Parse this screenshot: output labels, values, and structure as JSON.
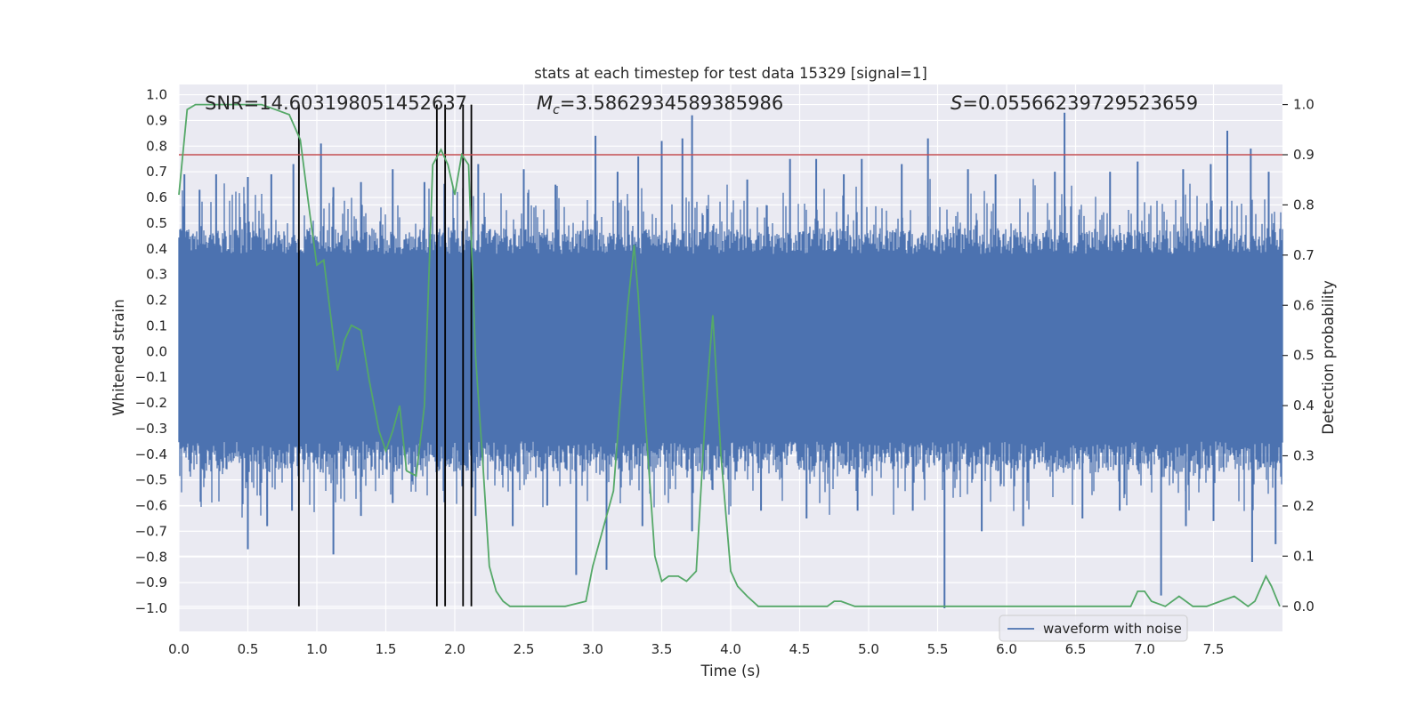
{
  "chart_data": {
    "type": "line",
    "title": "stats at each timestep for test data 15329 [signal=1]",
    "xlabel": "Time (s)",
    "ylabel_left": "Whitened strain",
    "ylabel_right": "Detection probability",
    "xlim": [
      0.0,
      8.0
    ],
    "ylim_left": [
      -1.09,
      1.04
    ],
    "ylim_right": [
      -0.05,
      1.04
    ],
    "x_ticks": [
      "0.0",
      "0.5",
      "1.0",
      "1.5",
      "2.0",
      "2.5",
      "3.0",
      "3.5",
      "4.0",
      "4.5",
      "5.0",
      "5.5",
      "6.0",
      "6.5",
      "7.0",
      "7.5"
    ],
    "y_ticks_left": [
      "1.0",
      "0.9",
      "0.8",
      "0.7",
      "0.6",
      "0.5",
      "0.4",
      "0.3",
      "0.2",
      "0.1",
      "0.0",
      "−0.1",
      "−0.2",
      "−0.3",
      "−0.4",
      "−0.5",
      "−0.6",
      "−0.7",
      "−0.8",
      "−0.9",
      "−1.0"
    ],
    "y_ticks_right": [
      "1.0",
      "0.9",
      "0.8",
      "0.7",
      "0.6",
      "0.5",
      "0.4",
      "0.3",
      "0.2",
      "0.1",
      "0.0"
    ],
    "grid": true,
    "annotations": {
      "snr": "SNR=14.603198051452637",
      "mc_symbol": "M",
      "mc_sub": "c",
      "mc_value": "=3.5862934589385986",
      "s_symbol": "S",
      "s_value": "=0.05566239729523659"
    },
    "threshold": {
      "value": 0.9,
      "color": "#c44e52"
    },
    "vertical_markers": [
      0.87,
      1.87,
      1.93,
      2.06,
      2.12
    ],
    "series": [
      {
        "name": "waveform with noise",
        "color": "#4c72b0",
        "style": "noise-band",
        "typical_envelope": [
          -0.35,
          0.38
        ],
        "spikes": [
          [
            0.04,
            0.69
          ],
          [
            0.15,
            0.63
          ],
          [
            0.27,
            0.69
          ],
          [
            0.5,
            0.68
          ],
          [
            0.67,
            0.69
          ],
          [
            0.83,
            0.73
          ],
          [
            1.03,
            0.81
          ],
          [
            1.12,
            0.64
          ],
          [
            1.32,
            0.66
          ],
          [
            1.55,
            0.71
          ],
          [
            1.78,
            0.66
          ],
          [
            2.17,
            0.73
          ],
          [
            2.5,
            0.71
          ],
          [
            2.73,
            0.65
          ],
          [
            3.02,
            0.84
          ],
          [
            3.18,
            0.7
          ],
          [
            3.33,
            0.76
          ],
          [
            3.5,
            0.82
          ],
          [
            3.65,
            0.83
          ],
          [
            3.72,
            0.92
          ],
          [
            4.12,
            0.67
          ],
          [
            4.43,
            0.75
          ],
          [
            4.62,
            0.75
          ],
          [
            4.82,
            0.69
          ],
          [
            4.95,
            0.75
          ],
          [
            5.24,
            0.73
          ],
          [
            5.43,
            0.83
          ],
          [
            5.72,
            0.71
          ],
          [
            5.92,
            0.69
          ],
          [
            6.35,
            0.7
          ],
          [
            6.42,
            0.93
          ],
          [
            6.75,
            0.7
          ],
          [
            6.95,
            0.74
          ],
          [
            7.28,
            0.71
          ],
          [
            7.48,
            0.73
          ],
          [
            7.6,
            0.86
          ],
          [
            7.77,
            0.79
          ],
          [
            7.9,
            0.7
          ],
          [
            0.5,
            -0.77
          ],
          [
            0.64,
            -0.68
          ],
          [
            0.82,
            -0.62
          ],
          [
            1.12,
            -0.79
          ],
          [
            1.32,
            -0.64
          ],
          [
            1.55,
            -0.59
          ],
          [
            2.15,
            -0.64
          ],
          [
            2.42,
            -0.68
          ],
          [
            2.67,
            -0.6
          ],
          [
            2.88,
            -0.87
          ],
          [
            3.1,
            -0.85
          ],
          [
            3.36,
            -0.68
          ],
          [
            3.72,
            -0.7
          ],
          [
            4.22,
            -0.62
          ],
          [
            4.55,
            -0.65
          ],
          [
            4.92,
            -0.62
          ],
          [
            5.32,
            -0.62
          ],
          [
            5.55,
            -1.0
          ],
          [
            5.82,
            -0.7
          ],
          [
            6.12,
            -0.68
          ],
          [
            6.55,
            -0.65
          ],
          [
            6.82,
            -0.62
          ],
          [
            7.12,
            -0.95
          ],
          [
            7.3,
            -0.68
          ],
          [
            7.5,
            -0.66
          ],
          [
            7.78,
            -0.82
          ],
          [
            7.95,
            -0.75
          ]
        ]
      },
      {
        "name": "",
        "color": "#55a868",
        "axis": "right",
        "x": [
          0.0,
          0.06,
          0.12,
          0.2,
          0.4,
          0.6,
          0.7,
          0.8,
          0.88,
          0.95,
          1.0,
          1.05,
          1.1,
          1.15,
          1.2,
          1.25,
          1.32,
          1.38,
          1.45,
          1.5,
          1.55,
          1.6,
          1.65,
          1.72,
          1.78,
          1.84,
          1.9,
          1.95,
          2.0,
          2.05,
          2.1,
          2.15,
          2.2,
          2.25,
          2.3,
          2.35,
          2.4,
          2.5,
          2.6,
          2.7,
          2.8,
          2.95,
          3.0,
          3.15,
          3.25,
          3.3,
          3.33,
          3.38,
          3.45,
          3.5,
          3.55,
          3.62,
          3.68,
          3.75,
          3.82,
          3.87,
          3.93,
          4.0,
          4.05,
          4.12,
          4.2,
          4.3,
          4.5,
          4.7,
          4.75,
          4.8,
          4.9,
          5.0,
          5.2,
          5.4,
          5.6,
          6.0,
          6.5,
          6.9,
          6.95,
          7.0,
          7.05,
          7.15,
          7.25,
          7.35,
          7.45,
          7.55,
          7.65,
          7.75,
          7.8,
          7.88,
          7.92,
          7.98
        ],
        "values": [
          0.82,
          0.99,
          1.0,
          1.0,
          1.0,
          1.0,
          0.99,
          0.98,
          0.93,
          0.78,
          0.68,
          0.69,
          0.58,
          0.47,
          0.53,
          0.56,
          0.55,
          0.45,
          0.35,
          0.31,
          0.35,
          0.4,
          0.27,
          0.26,
          0.4,
          0.88,
          0.91,
          0.88,
          0.82,
          0.9,
          0.88,
          0.5,
          0.3,
          0.08,
          0.03,
          0.01,
          0.0,
          0.0,
          0.0,
          0.0,
          0.0,
          0.01,
          0.08,
          0.23,
          0.59,
          0.72,
          0.62,
          0.38,
          0.1,
          0.05,
          0.06,
          0.06,
          0.05,
          0.07,
          0.4,
          0.58,
          0.3,
          0.07,
          0.04,
          0.02,
          0.0,
          0.0,
          0.0,
          0.0,
          0.01,
          0.01,
          0.0,
          0.0,
          0.0,
          0.0,
          0.0,
          0.0,
          0.0,
          0.0,
          0.03,
          0.03,
          0.01,
          0.0,
          0.02,
          0.0,
          0.0,
          0.01,
          0.02,
          0.0,
          0.01,
          0.06,
          0.04,
          0.0
        ]
      }
    ],
    "legend": {
      "position": "lower-right",
      "entries": [
        "waveform with noise"
      ]
    }
  }
}
